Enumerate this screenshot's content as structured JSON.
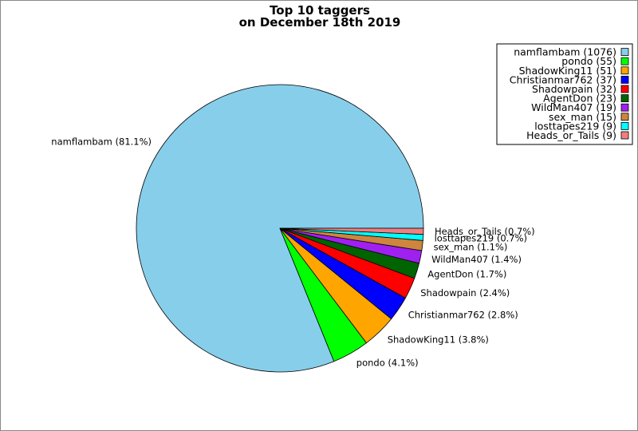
{
  "chart_data": {
    "type": "pie",
    "title": "Top 10 taggers",
    "subtitle": "on December 18th 2019",
    "legend_position": "top-right",
    "slices": [
      {
        "name": "namflambam",
        "value": 1076,
        "label": "namflambam (81.1%)",
        "legend": "namflambam (1076)",
        "color": "#87ceeb"
      },
      {
        "name": "pondo",
        "value": 55,
        "label": "pondo (4.1%)",
        "legend": "pondo (55)",
        "color": "#00ff00"
      },
      {
        "name": "ShadowKing11",
        "value": 51,
        "label": "ShadowKing11 (3.8%)",
        "legend": "ShadowKing11 (51)",
        "color": "#ffa500"
      },
      {
        "name": "Christianmar762",
        "value": 37,
        "label": "Christianmar762 (2.8%)",
        "legend": "Christianmar762 (37)",
        "color": "#0000ff"
      },
      {
        "name": "Shadowpain",
        "value": 32,
        "label": "Shadowpain (2.4%)",
        "legend": "Shadowpain (32)",
        "color": "#ff0000"
      },
      {
        "name": "AgentDon",
        "value": 23,
        "label": "AgentDon (1.7%)",
        "legend": "AgentDon (23)",
        "color": "#006400"
      },
      {
        "name": "WildMan407",
        "value": 19,
        "label": "WildMan407 (1.4%)",
        "legend": "WildMan407 (19)",
        "color": "#a020f0"
      },
      {
        "name": "sex_man",
        "value": 15,
        "label": "sex_man (1.1%)",
        "legend": "sex_man (15)",
        "color": "#cd853f"
      },
      {
        "name": "losttapes219",
        "value": 9,
        "label": "losttapes219 (0.7%)",
        "legend": "losttapes219 (9)",
        "color": "#00ffff"
      },
      {
        "name": "Heads_or_Tails",
        "value": 9,
        "label": "Heads_or_Tails (0.7%)",
        "legend": "Heads_or_Tails (9)",
        "color": "#f08080"
      }
    ]
  }
}
